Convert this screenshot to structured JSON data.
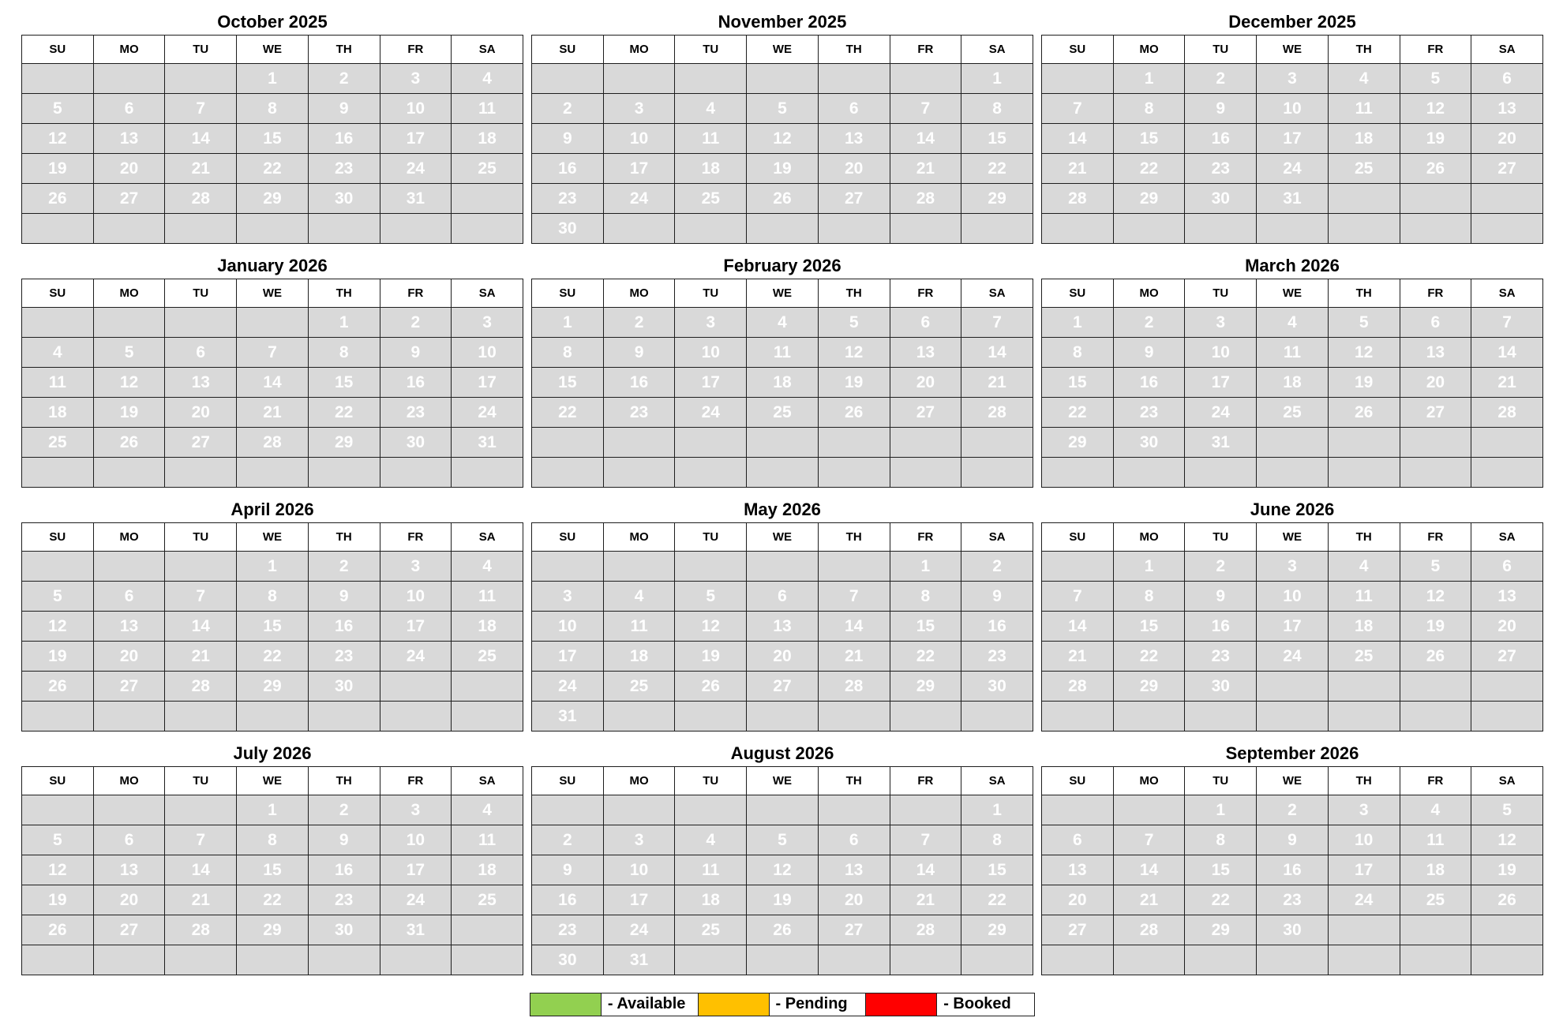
{
  "weekday_headers": [
    "SU",
    "MO",
    "TU",
    "WE",
    "TH",
    "FR",
    "SA"
  ],
  "colors": {
    "available": "#92d050",
    "pending": "#ffc000",
    "booked": "#ff0000",
    "empty": "#d9d9d9"
  },
  "legend": [
    {
      "label": "- Available",
      "status": "available"
    },
    {
      "label": "- Pending",
      "status": "pending"
    },
    {
      "label": "- Booked",
      "status": "booked"
    }
  ],
  "months": [
    {
      "title": "October 2025",
      "start_dow": 3,
      "days": 31,
      "booked": [
        10,
        11,
        14,
        15,
        16,
        17,
        18,
        19,
        20,
        21,
        22,
        23,
        24
      ],
      "transitions": {
        "9": "split-left",
        "12": "tiny-r",
        "25": "split-right"
      }
    },
    {
      "title": "November 2025",
      "start_dow": 6,
      "days": 30,
      "booked": [],
      "transitions": {}
    },
    {
      "title": "December 2025",
      "start_dow": 1,
      "days": 31,
      "booked": [
        25
      ],
      "transitions": {
        "24": "split-left",
        "26": "split-right"
      }
    },
    {
      "title": "January 2026",
      "start_dow": 4,
      "days": 31,
      "booked": [],
      "transitions": {}
    },
    {
      "title": "February 2026",
      "start_dow": 0,
      "days": 28,
      "booked": [],
      "transitions": {}
    },
    {
      "title": "March 2026",
      "start_dow": 0,
      "days": 31,
      "booked": [],
      "transitions": {}
    },
    {
      "title": "April 2026",
      "start_dow": 3,
      "days": 30,
      "booked": [],
      "transitions": {}
    },
    {
      "title": "May 2026",
      "start_dow": 5,
      "days": 31,
      "booked": [
        2,
        22,
        23,
        24,
        25,
        26,
        27,
        28,
        29,
        30,
        31
      ],
      "transitions": {
        "1": "split-left",
        "3": "tiny-r",
        "21": "split-left"
      }
    },
    {
      "title": "June 2026",
      "start_dow": 1,
      "days": 30,
      "booked": [
        1,
        2,
        3,
        4,
        5,
        6,
        7,
        8,
        9,
        10,
        11,
        12,
        13,
        14,
        15,
        16,
        17,
        18,
        19,
        20,
        21,
        22,
        23,
        24,
        25,
        26
      ],
      "transitions": {
        "27": "split-right"
      }
    },
    {
      "title": "July 2026",
      "start_dow": 3,
      "days": 31,
      "booked": [
        26,
        27,
        28,
        29,
        30,
        31
      ],
      "transitions": {
        "25": "split-left"
      }
    },
    {
      "title": "August 2026",
      "start_dow": 6,
      "days": 31,
      "booked": [
        1,
        2,
        3,
        4,
        5,
        6,
        7,
        8,
        9,
        10,
        11,
        12,
        13,
        14,
        23,
        24,
        25,
        26,
        27,
        28,
        29,
        30,
        31
      ],
      "transitions": {
        "15": "split-right",
        "22": "split-left"
      }
    },
    {
      "title": "September 2026",
      "start_dow": 2,
      "days": 30,
      "booked": [
        1,
        2,
        3,
        4
      ],
      "transitions": {
        "5": "split-right"
      }
    }
  ]
}
